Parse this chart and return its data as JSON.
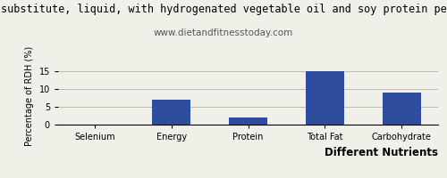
{
  "title_line1": "substitute, liquid, with hydrogenated vegetable oil and soy protein pe",
  "subtitle": "www.dietandfitnesstoday.com",
  "categories": [
    "Selenium",
    "Energy",
    "Protein",
    "Total Fat",
    "Carbohydrate"
  ],
  "values": [
    0,
    7.0,
    2.0,
    15.0,
    9.0
  ],
  "bar_color": "#2e4d9e",
  "xlabel": "Different Nutrients",
  "ylabel": "Percentage of RDH (%)",
  "ylim": [
    0,
    16
  ],
  "yticks": [
    0,
    5,
    10,
    15
  ],
  "background_color": "#f0f0e8",
  "title_fontsize": 8.5,
  "subtitle_fontsize": 7.5,
  "axis_label_fontsize": 7,
  "tick_fontsize": 7,
  "xlabel_fontsize": 8.5,
  "xlabel_fontweight": "bold"
}
